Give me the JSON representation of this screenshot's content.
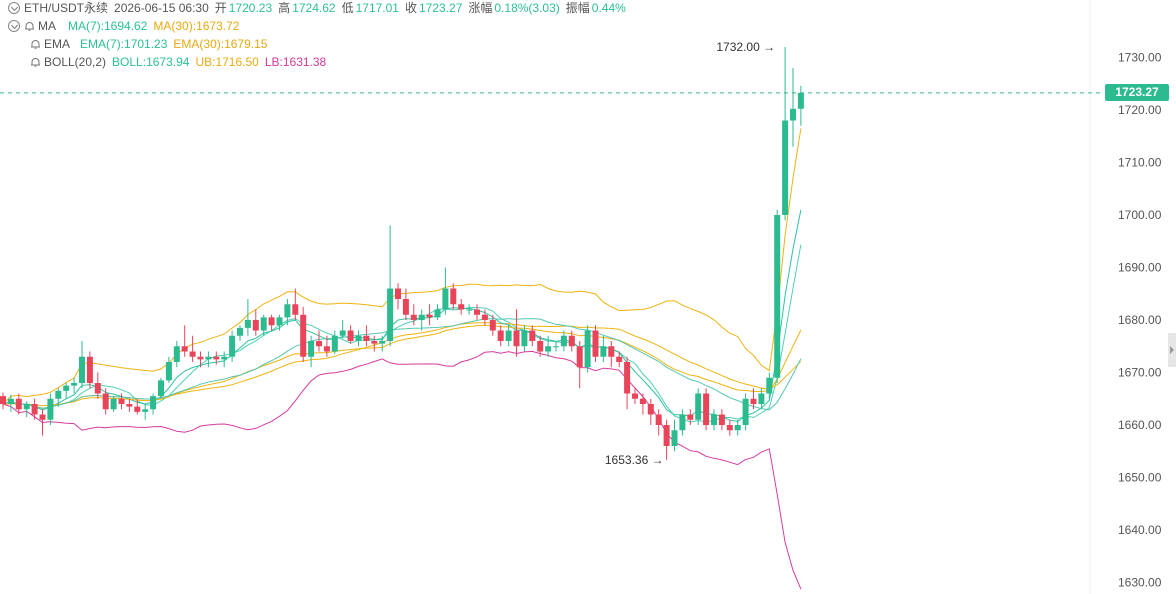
{
  "header": {
    "symbol": "ETH/USDT永续",
    "datetime": "2026-06-15 06:30",
    "open_label": "开",
    "open": "1720.23",
    "high_label": "高",
    "high": "1724.62",
    "low_label": "低",
    "low": "1717.01",
    "close_label": "收",
    "close": "1723.27",
    "change_label": "涨幅",
    "change": "0.18%(3.03)",
    "amplitude_label": "振幅",
    "amplitude": "0.44%"
  },
  "indicators": {
    "ma": {
      "name": "MA",
      "ma7": "MA(7):1694.62",
      "ma30": "MA(30):1673.72"
    },
    "ema": {
      "name": "EMA",
      "ema7": "EMA(7):1701.23",
      "ema30": "EMA(30):1679.15"
    },
    "boll": {
      "name": "BOLL(20,2)",
      "boll": "BOLL:1673.94",
      "ub": "UB:1716.50",
      "lb": "LB:1631.38"
    }
  },
  "colors": {
    "up": "#2cbb8f",
    "down": "#e8455a",
    "ma7": "#4fd0b5",
    "ma30": "#efb310",
    "ema7": "#2ec2a0",
    "ema30": "#efb310",
    "boll": "#56c7b3",
    "ub": "#efb310",
    "lb": "#d63ba0"
  },
  "chart_data": {
    "type": "candlestick",
    "ylim": [
      1628,
      1738
    ],
    "y_ticks": [
      "1730.00",
      "1720.00",
      "1710.00",
      "1700.00",
      "1690.00",
      "1680.00",
      "1670.00",
      "1660.00",
      "1650.00",
      "1640.00",
      "1630.00"
    ],
    "last_price": "1723.27",
    "max_annotation": {
      "label": "1732.00",
      "value": 1732.0,
      "index": 99
    },
    "min_annotation": {
      "label": "1653.36",
      "value": 1653.36,
      "index": 84
    },
    "candles": [
      [
        1665.5,
        1666.2,
        1663.0,
        1664.0
      ],
      [
        1664.0,
        1665.8,
        1662.5,
        1665.0
      ],
      [
        1665.0,
        1666.0,
        1662.0,
        1663.0
      ],
      [
        1663.0,
        1664.5,
        1661.5,
        1664.0
      ],
      [
        1664.0,
        1665.0,
        1661.0,
        1662.0
      ],
      [
        1662.0,
        1663.0,
        1658.0,
        1661.0
      ],
      [
        1661.0,
        1666.0,
        1660.0,
        1665.0
      ],
      [
        1665.0,
        1667.0,
        1663.5,
        1666.5
      ],
      [
        1666.5,
        1668.0,
        1665.0,
        1667.5
      ],
      [
        1667.5,
        1669.0,
        1666.0,
        1668.0
      ],
      [
        1668.0,
        1676.0,
        1667.0,
        1673.0
      ],
      [
        1673.0,
        1674.0,
        1667.0,
        1668.0
      ],
      [
        1668.0,
        1670.0,
        1665.0,
        1666.0
      ],
      [
        1666.0,
        1667.0,
        1662.0,
        1663.0
      ],
      [
        1663.0,
        1665.5,
        1662.5,
        1665.0
      ],
      [
        1665.0,
        1666.0,
        1663.0,
        1664.0
      ],
      [
        1664.0,
        1665.0,
        1662.5,
        1663.5
      ],
      [
        1663.5,
        1665.0,
        1662.0,
        1662.5
      ],
      [
        1662.5,
        1664.0,
        1661.0,
        1663.0
      ],
      [
        1663.0,
        1666.0,
        1662.0,
        1665.5
      ],
      [
        1665.5,
        1669.0,
        1665.0,
        1668.5
      ],
      [
        1668.5,
        1673.0,
        1668.0,
        1672.0
      ],
      [
        1672.0,
        1676.0,
        1671.0,
        1675.0
      ],
      [
        1675.0,
        1679.0,
        1673.0,
        1674.0
      ],
      [
        1674.0,
        1677.0,
        1672.0,
        1673.0
      ],
      [
        1673.0,
        1674.0,
        1671.0,
        1672.5
      ],
      [
        1672.5,
        1674.0,
        1671.0,
        1673.0
      ],
      [
        1673.0,
        1674.0,
        1671.5,
        1672.5
      ],
      [
        1672.5,
        1674.0,
        1671.0,
        1673.0
      ],
      [
        1673.0,
        1678.0,
        1672.0,
        1677.0
      ],
      [
        1677.0,
        1679.0,
        1676.0,
        1678.5
      ],
      [
        1678.5,
        1684.0,
        1677.0,
        1680.0
      ],
      [
        1680.0,
        1682.0,
        1677.0,
        1678.0
      ],
      [
        1678.0,
        1681.0,
        1677.0,
        1680.5
      ],
      [
        1680.5,
        1681.0,
        1678.0,
        1679.0
      ],
      [
        1679.0,
        1681.0,
        1678.0,
        1680.5
      ],
      [
        1680.5,
        1684.0,
        1679.0,
        1683.0
      ],
      [
        1683.0,
        1686.0,
        1680.0,
        1681.0
      ],
      [
        1681.0,
        1682.5,
        1672.0,
        1673.0
      ],
      [
        1673.0,
        1677.0,
        1671.0,
        1676.0
      ],
      [
        1676.0,
        1678.0,
        1674.0,
        1675.0
      ],
      [
        1675.0,
        1677.0,
        1673.0,
        1674.0
      ],
      [
        1674.0,
        1678.0,
        1673.5,
        1677.0
      ],
      [
        1677.0,
        1680.0,
        1676.5,
        1678.0
      ],
      [
        1678.0,
        1679.0,
        1675.5,
        1676.0
      ],
      [
        1676.0,
        1678.0,
        1675.0,
        1677.0
      ],
      [
        1677.0,
        1679.0,
        1675.0,
        1676.0
      ],
      [
        1676.0,
        1677.0,
        1674.0,
        1675.5
      ],
      [
        1675.5,
        1677.0,
        1674.0,
        1676.0
      ],
      [
        1676.0,
        1698.0,
        1675.0,
        1686.0
      ],
      [
        1686.0,
        1687.0,
        1682.0,
        1684.0
      ],
      [
        1684.0,
        1686.0,
        1680.0,
        1681.0
      ],
      [
        1681.0,
        1683.0,
        1679.0,
        1680.0
      ],
      [
        1680.0,
        1682.0,
        1678.0,
        1681.0
      ],
      [
        1681.0,
        1683.0,
        1679.0,
        1680.5
      ],
      [
        1680.5,
        1683.0,
        1680.0,
        1682.0
      ],
      [
        1682.0,
        1690.0,
        1681.0,
        1686.0
      ],
      [
        1686.0,
        1687.0,
        1682.0,
        1683.0
      ],
      [
        1683.0,
        1684.0,
        1681.0,
        1682.0
      ],
      [
        1682.0,
        1683.0,
        1681.0,
        1682.0
      ],
      [
        1682.0,
        1683.0,
        1680.0,
        1681.0
      ],
      [
        1681.0,
        1682.0,
        1679.0,
        1680.0
      ],
      [
        1680.0,
        1681.0,
        1677.0,
        1678.0
      ],
      [
        1678.0,
        1679.0,
        1675.0,
        1676.0
      ],
      [
        1676.0,
        1679.0,
        1675.0,
        1678.0
      ],
      [
        1678.0,
        1682.0,
        1673.0,
        1675.0
      ],
      [
        1675.0,
        1679.0,
        1674.0,
        1678.0
      ],
      [
        1678.0,
        1679.0,
        1675.0,
        1676.0
      ],
      [
        1676.0,
        1677.0,
        1673.0,
        1674.0
      ],
      [
        1674.0,
        1677.0,
        1673.0,
        1675.0
      ],
      [
        1675.0,
        1676.0,
        1674.0,
        1675.0
      ],
      [
        1675.0,
        1678.0,
        1674.0,
        1677.0
      ],
      [
        1677.0,
        1678.0,
        1674.0,
        1675.0
      ],
      [
        1675.0,
        1676.0,
        1667.0,
        1671.0
      ],
      [
        1671.0,
        1679.0,
        1670.0,
        1678.0
      ],
      [
        1678.0,
        1679.0,
        1672.0,
        1673.0
      ],
      [
        1673.0,
        1677.0,
        1672.0,
        1675.0
      ],
      [
        1675.0,
        1676.0,
        1671.0,
        1673.0
      ],
      [
        1673.0,
        1674.0,
        1671.0,
        1672.0
      ],
      [
        1672.0,
        1673.0,
        1663.0,
        1666.0
      ],
      [
        1666.0,
        1667.0,
        1664.0,
        1665.0
      ],
      [
        1665.0,
        1666.0,
        1662.0,
        1664.0
      ],
      [
        1664.0,
        1665.0,
        1660.0,
        1662.0
      ],
      [
        1662.0,
        1663.0,
        1658.0,
        1660.0
      ],
      [
        1660.0,
        1661.0,
        1653.36,
        1656.0
      ],
      [
        1656.0,
        1661.0,
        1655.0,
        1659.0
      ],
      [
        1659.0,
        1663.0,
        1658.0,
        1662.0
      ],
      [
        1662.0,
        1663.0,
        1660.0,
        1661.0
      ],
      [
        1661.0,
        1667.0,
        1660.0,
        1666.0
      ],
      [
        1666.0,
        1667.0,
        1659.0,
        1660.0
      ],
      [
        1660.0,
        1663.0,
        1659.0,
        1662.0
      ],
      [
        1662.0,
        1663.0,
        1659.0,
        1660.0
      ],
      [
        1660.0,
        1661.0,
        1658.0,
        1659.0
      ],
      [
        1659.0,
        1661.0,
        1658.0,
        1660.0
      ],
      [
        1660.0,
        1666.0,
        1659.0,
        1665.0
      ],
      [
        1665.0,
        1667.0,
        1663.0,
        1664.0
      ],
      [
        1664.0,
        1667.0,
        1663.0,
        1666.0
      ],
      [
        1666.0,
        1670.0,
        1665.0,
        1669.0
      ],
      [
        1669.0,
        1701.0,
        1668.0,
        1700.0
      ],
      [
        1700.0,
        1732.0,
        1699.0,
        1718.0
      ],
      [
        1718.0,
        1728.0,
        1713.0,
        1720.23
      ],
      [
        1720.23,
        1724.62,
        1717.01,
        1723.27
      ]
    ]
  }
}
